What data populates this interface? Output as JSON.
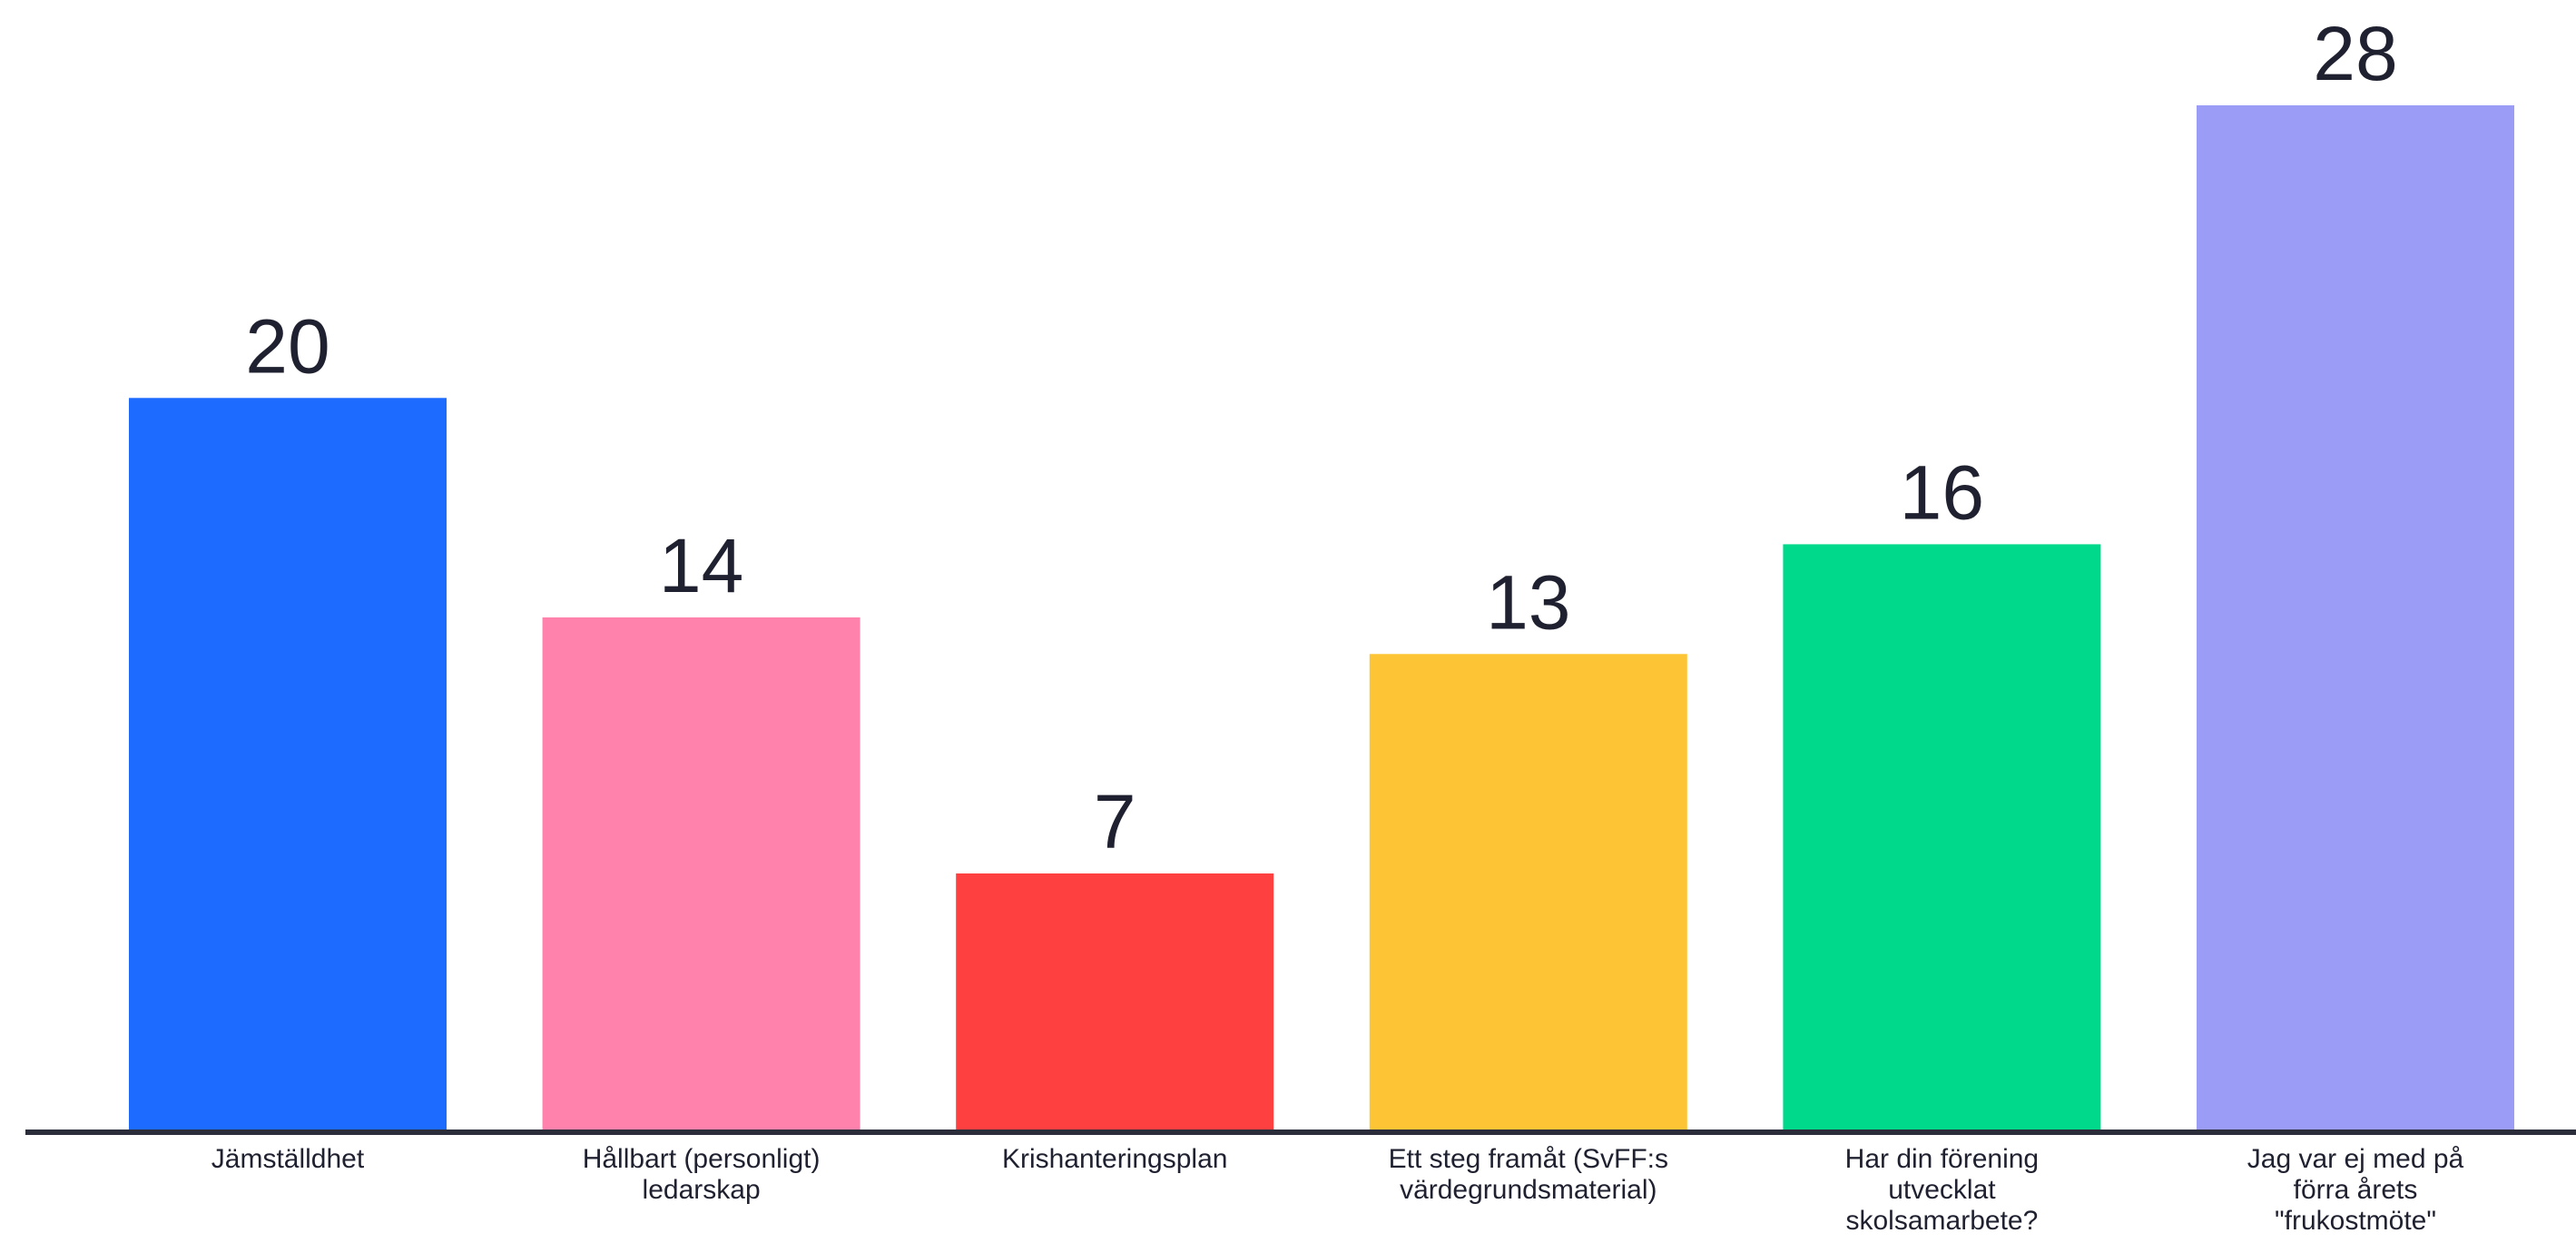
{
  "chart_data": {
    "type": "bar",
    "categories": [
      [
        "Jämställdhet"
      ],
      [
        "Hållbart (personligt)",
        "ledarskap"
      ],
      [
        "Krishanteringsplan"
      ],
      [
        "Ett steg framåt (SvFF:s",
        "värdegrundsmaterial)"
      ],
      [
        "Har din förening",
        "utvecklat",
        "skolsamarbete?"
      ],
      [
        "Jag var ej med på",
        "förra årets",
        "\"frukostmöte\""
      ]
    ],
    "values": [
      20,
      14,
      7,
      13,
      16,
      28
    ],
    "colors": [
      "#1d6bff",
      "#ff82ad",
      "#ff4040",
      "#fdc536",
      "#00d98b",
      "#9a9cf5"
    ],
    "axis_color": "#2b2d3a",
    "ylim": [
      0,
      28
    ],
    "grid": false,
    "legend": "none"
  }
}
